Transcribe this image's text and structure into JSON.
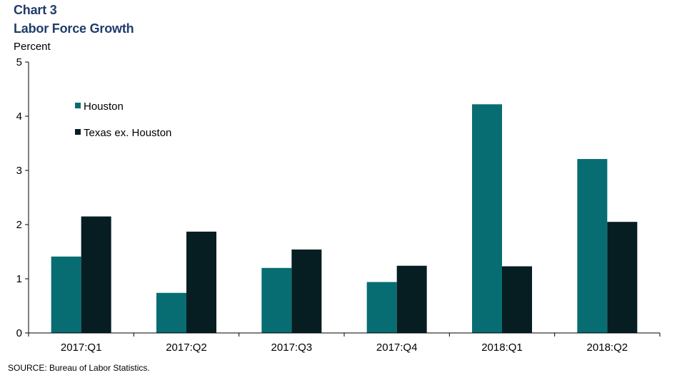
{
  "title": "Chart 3",
  "subtitle": "Labor Force Growth",
  "source": "SOURCE: Bureau of Labor Statistics.",
  "chart_data": {
    "type": "bar",
    "title": "Chart 3",
    "subtitle": "Labor Force Growth",
    "ylabel": "Percent",
    "xlabel": "",
    "categories": [
      "2017:Q1",
      "2017:Q2",
      "2017:Q3",
      "2017:Q4",
      "2018:Q1",
      "2018:Q2"
    ],
    "series": [
      {
        "name": "Houston",
        "color": "#076d72",
        "values": [
          1.41,
          0.74,
          1.2,
          0.94,
          4.22,
          3.21
        ]
      },
      {
        "name": "Texas ex. Houston",
        "color": "#061d22",
        "values": [
          2.15,
          1.87,
          1.54,
          1.24,
          1.23,
          2.05
        ]
      }
    ],
    "ylim": [
      0,
      5
    ],
    "yticks": [
      "0",
      "1",
      "2",
      "3",
      "4",
      "5"
    ],
    "grid": false,
    "legend_position": "top-left"
  }
}
